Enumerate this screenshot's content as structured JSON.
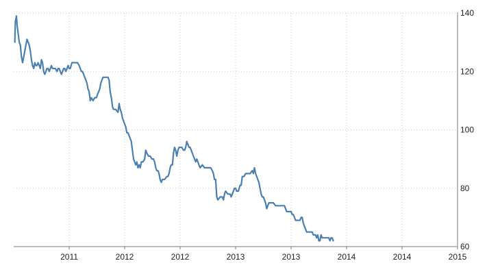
{
  "chart_data": {
    "type": "line",
    "title": "",
    "xlabel": "",
    "ylabel": "",
    "ylim": [
      60,
      140
    ],
    "grid": true,
    "y_axis_side": "right",
    "line_color": "#4a7fb0",
    "grid_color": "#c9c9c9",
    "yticks": [
      60,
      80,
      100,
      120,
      140
    ],
    "xticks": [
      {
        "pos": 0.5,
        "label": "2011"
      },
      {
        "pos": 1.5,
        "label": "2012"
      },
      {
        "pos": 2.5,
        "label": "2012"
      },
      {
        "pos": 3.5,
        "label": "2013"
      },
      {
        "pos": 4.5,
        "label": "2013"
      },
      {
        "pos": 5.5,
        "label": "2014"
      },
      {
        "pos": 6.5,
        "label": "2014"
      },
      {
        "pos": 7.5,
        "label": "2015"
      }
    ],
    "xlim": [
      -0.5,
      7.5
    ],
    "series": [
      {
        "values": [
          [
            -0.48,
            130
          ],
          [
            -0.47,
            137
          ],
          [
            -0.45,
            139
          ],
          [
            -0.44,
            136
          ],
          [
            -0.42,
            133
          ],
          [
            -0.4,
            130
          ],
          [
            -0.38,
            129
          ],
          [
            -0.36,
            125
          ],
          [
            -0.34,
            123
          ],
          [
            -0.32,
            125
          ],
          [
            -0.3,
            127
          ],
          [
            -0.28,
            129
          ],
          [
            -0.26,
            131
          ],
          [
            -0.24,
            130
          ],
          [
            -0.22,
            129
          ],
          [
            -0.2,
            127
          ],
          [
            -0.18,
            124
          ],
          [
            -0.16,
            122
          ],
          [
            -0.14,
            121
          ],
          [
            -0.12,
            123
          ],
          [
            -0.1,
            122
          ],
          [
            -0.08,
            122
          ],
          [
            -0.06,
            123
          ],
          [
            -0.04,
            122
          ],
          [
            -0.02,
            121
          ],
          [
            0.0,
            124
          ],
          [
            0.02,
            123
          ],
          [
            0.04,
            120
          ],
          [
            0.06,
            119
          ],
          [
            0.08,
            120
          ],
          [
            0.1,
            121
          ],
          [
            0.12,
            121
          ],
          [
            0.14,
            120
          ],
          [
            0.16,
            121
          ],
          [
            0.18,
            122
          ],
          [
            0.2,
            121
          ],
          [
            0.22,
            121
          ],
          [
            0.25,
            121
          ],
          [
            0.28,
            120
          ],
          [
            0.3,
            121
          ],
          [
            0.32,
            121
          ],
          [
            0.34,
            120
          ],
          [
            0.36,
            119
          ],
          [
            0.38,
            120
          ],
          [
            0.4,
            121
          ],
          [
            0.42,
            121
          ],
          [
            0.44,
            120
          ],
          [
            0.46,
            121
          ],
          [
            0.48,
            122
          ],
          [
            0.5,
            121
          ],
          [
            0.52,
            121
          ],
          [
            0.55,
            123
          ],
          [
            0.58,
            123
          ],
          [
            0.62,
            123
          ],
          [
            0.65,
            123
          ],
          [
            0.68,
            122
          ],
          [
            0.7,
            121
          ],
          [
            0.72,
            120
          ],
          [
            0.74,
            120
          ],
          [
            0.76,
            119
          ],
          [
            0.78,
            118
          ],
          [
            0.8,
            117
          ],
          [
            0.82,
            116
          ],
          [
            0.84,
            114
          ],
          [
            0.86,
            113
          ],
          [
            0.88,
            110
          ],
          [
            0.9,
            111
          ],
          [
            0.93,
            110
          ],
          [
            0.96,
            111
          ],
          [
            0.99,
            111
          ],
          [
            1.01,
            112
          ],
          [
            1.03,
            113
          ],
          [
            1.05,
            114
          ],
          [
            1.07,
            116
          ],
          [
            1.09,
            117
          ],
          [
            1.11,
            118
          ],
          [
            1.13,
            118
          ],
          [
            1.16,
            118
          ],
          [
            1.2,
            118
          ],
          [
            1.22,
            117
          ],
          [
            1.24,
            113
          ],
          [
            1.26,
            111
          ],
          [
            1.28,
            108
          ],
          [
            1.3,
            107
          ],
          [
            1.34,
            107
          ],
          [
            1.38,
            106
          ],
          [
            1.4,
            109
          ],
          [
            1.42,
            107
          ],
          [
            1.44,
            106
          ],
          [
            1.46,
            104
          ],
          [
            1.48,
            103
          ],
          [
            1.5,
            102
          ],
          [
            1.52,
            101
          ],
          [
            1.54,
            99
          ],
          [
            1.56,
            99
          ],
          [
            1.58,
            98
          ],
          [
            1.62,
            96
          ],
          [
            1.64,
            93
          ],
          [
            1.66,
            90
          ],
          [
            1.68,
            89
          ],
          [
            1.7,
            88
          ],
          [
            1.72,
            89
          ],
          [
            1.74,
            87
          ],
          [
            1.76,
            88
          ],
          [
            1.78,
            87
          ],
          [
            1.8,
            89
          ],
          [
            1.83,
            89
          ],
          [
            1.86,
            90
          ],
          [
            1.88,
            93
          ],
          [
            1.9,
            92
          ],
          [
            1.93,
            91
          ],
          [
            1.96,
            91
          ],
          [
            1.99,
            90
          ],
          [
            2.02,
            90
          ],
          [
            2.04,
            89
          ],
          [
            2.06,
            87
          ],
          [
            2.08,
            86
          ],
          [
            2.1,
            86
          ],
          [
            2.12,
            85
          ],
          [
            2.14,
            83
          ],
          [
            2.16,
            82
          ],
          [
            2.18,
            83
          ],
          [
            2.22,
            83
          ],
          [
            2.26,
            84
          ],
          [
            2.28,
            84
          ],
          [
            2.3,
            85
          ],
          [
            2.32,
            87
          ],
          [
            2.34,
            88
          ],
          [
            2.36,
            88
          ],
          [
            2.38,
            92
          ],
          [
            2.4,
            94
          ],
          [
            2.42,
            93
          ],
          [
            2.44,
            91
          ],
          [
            2.46,
            93
          ],
          [
            2.48,
            94
          ],
          [
            2.5,
            94
          ],
          [
            2.53,
            94
          ],
          [
            2.56,
            93
          ],
          [
            2.58,
            93
          ],
          [
            2.6,
            94
          ],
          [
            2.62,
            96
          ],
          [
            2.64,
            95
          ],
          [
            2.66,
            94
          ],
          [
            2.68,
            94
          ],
          [
            2.7,
            93
          ],
          [
            2.72,
            92
          ],
          [
            2.74,
            91
          ],
          [
            2.76,
            90
          ],
          [
            2.78,
            89
          ],
          [
            2.8,
            90
          ],
          [
            2.82,
            89
          ],
          [
            2.84,
            88
          ],
          [
            2.86,
            87
          ],
          [
            2.9,
            88
          ],
          [
            2.94,
            87
          ],
          [
            3.0,
            87
          ],
          [
            3.05,
            87
          ],
          [
            3.08,
            86
          ],
          [
            3.1,
            85
          ],
          [
            3.12,
            83
          ],
          [
            3.14,
            83
          ],
          [
            3.16,
            77
          ],
          [
            3.18,
            76
          ],
          [
            3.22,
            77
          ],
          [
            3.26,
            77
          ],
          [
            3.28,
            76
          ],
          [
            3.3,
            78
          ],
          [
            3.32,
            79
          ],
          [
            3.36,
            78
          ],
          [
            3.4,
            78
          ],
          [
            3.42,
            77
          ],
          [
            3.44,
            78
          ],
          [
            3.46,
            79
          ],
          [
            3.48,
            80
          ],
          [
            3.5,
            80
          ],
          [
            3.52,
            79
          ],
          [
            3.55,
            79
          ],
          [
            3.58,
            81
          ],
          [
            3.6,
            81
          ],
          [
            3.62,
            84
          ],
          [
            3.65,
            84
          ],
          [
            3.68,
            85
          ],
          [
            3.72,
            85
          ],
          [
            3.76,
            85
          ],
          [
            3.8,
            86
          ],
          [
            3.82,
            85
          ],
          [
            3.84,
            87
          ],
          [
            3.86,
            85
          ],
          [
            3.88,
            84
          ],
          [
            3.9,
            83
          ],
          [
            3.92,
            82
          ],
          [
            3.94,
            80
          ],
          [
            3.96,
            78
          ],
          [
            3.98,
            77
          ],
          [
            4.0,
            77
          ],
          [
            4.02,
            76
          ],
          [
            4.04,
            75
          ],
          [
            4.06,
            73
          ],
          [
            4.08,
            74
          ],
          [
            4.1,
            75
          ],
          [
            4.14,
            75
          ],
          [
            4.18,
            75
          ],
          [
            4.22,
            74
          ],
          [
            4.26,
            74
          ],
          [
            4.3,
            74
          ],
          [
            4.34,
            74
          ],
          [
            4.38,
            74
          ],
          [
            4.4,
            73
          ],
          [
            4.42,
            72
          ],
          [
            4.46,
            72
          ],
          [
            4.5,
            72
          ],
          [
            4.52,
            71
          ],
          [
            4.54,
            71
          ],
          [
            4.56,
            70
          ],
          [
            4.58,
            69
          ],
          [
            4.62,
            69
          ],
          [
            4.66,
            69
          ],
          [
            4.68,
            70
          ],
          [
            4.7,
            70
          ],
          [
            4.72,
            68
          ],
          [
            4.74,
            67
          ],
          [
            4.76,
            66
          ],
          [
            4.78,
            65
          ],
          [
            4.8,
            65
          ],
          [
            4.84,
            65
          ],
          [
            4.88,
            65
          ],
          [
            4.9,
            64
          ],
          [
            4.92,
            64
          ],
          [
            4.94,
            64
          ],
          [
            4.96,
            63
          ],
          [
            4.98,
            64
          ],
          [
            5.0,
            62
          ],
          [
            5.02,
            62
          ],
          [
            5.04,
            64
          ],
          [
            5.06,
            63
          ],
          [
            5.1,
            63
          ],
          [
            5.14,
            63
          ],
          [
            5.18,
            63
          ],
          [
            5.2,
            62
          ],
          [
            5.22,
            63
          ],
          [
            5.24,
            63
          ],
          [
            5.26,
            62
          ]
        ]
      }
    ]
  }
}
